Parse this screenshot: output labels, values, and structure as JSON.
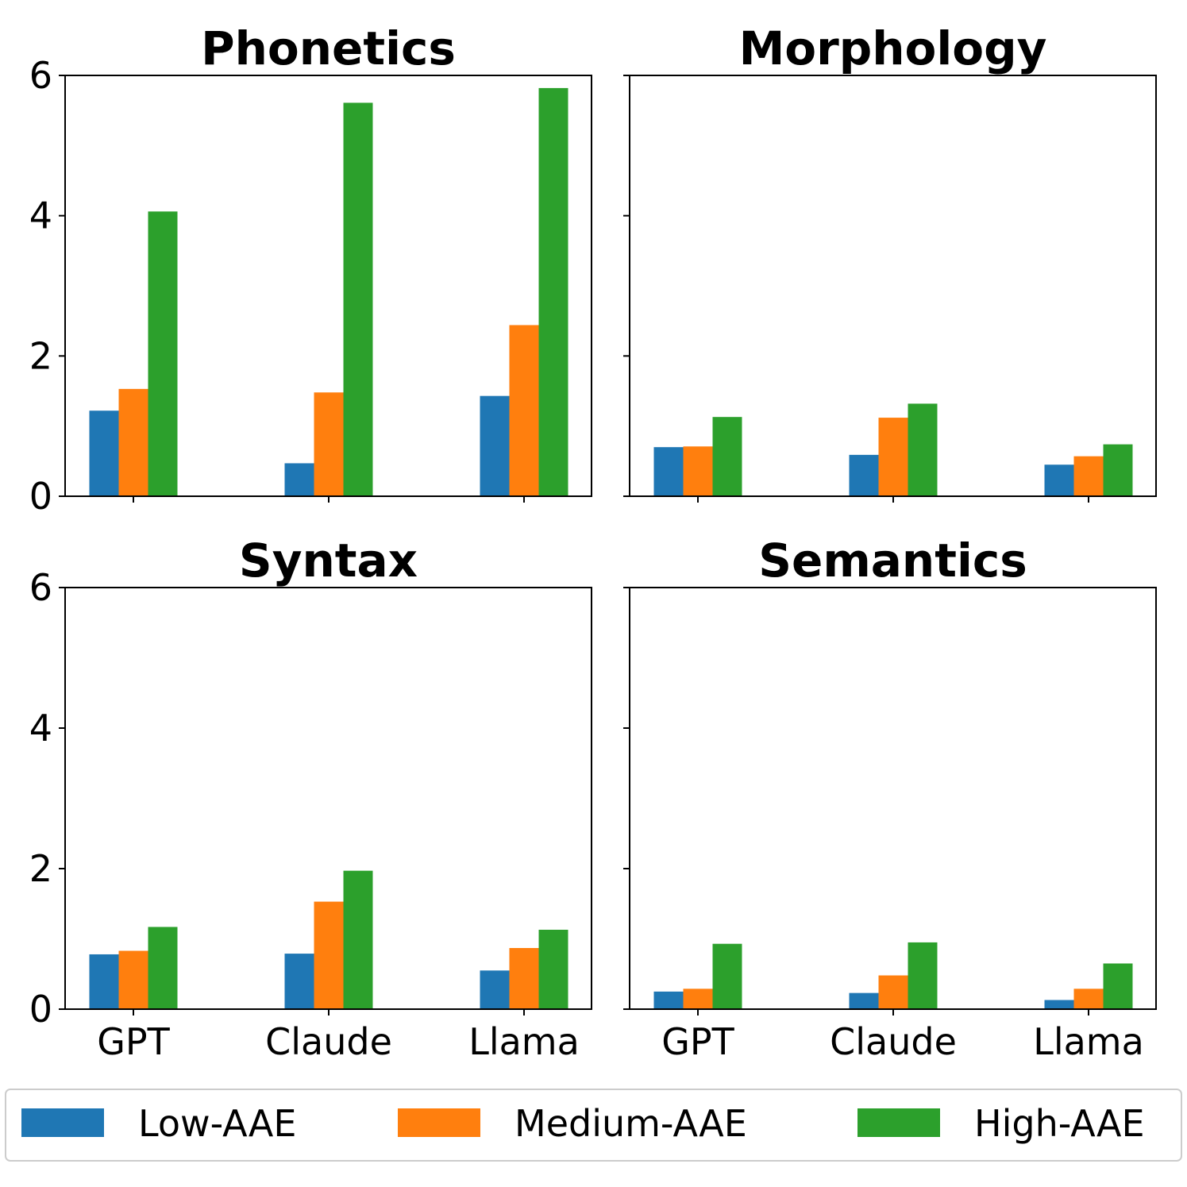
{
  "chart_data": {
    "type": "bar",
    "layout": "2x2 grid",
    "sharey": true,
    "categories": [
      "GPT",
      "Claude",
      "Llama"
    ],
    "ylim": [
      0,
      6
    ],
    "yticks": [
      0,
      2,
      4,
      6
    ],
    "legend": {
      "position": "bottom",
      "entries": [
        {
          "name": "Low-AAE",
          "color": "#1f77b4"
        },
        {
          "name": "Medium-AAE",
          "color": "#ff7f0e"
        },
        {
          "name": "High-AAE",
          "color": "#2ca02c"
        }
      ]
    },
    "panels": [
      {
        "title": "Phonetics",
        "series": [
          {
            "name": "Low-AAE",
            "values": [
              1.22,
              0.47,
              1.43
            ]
          },
          {
            "name": "Medium-AAE",
            "values": [
              1.53,
              1.48,
              2.44
            ]
          },
          {
            "name": "High-AAE",
            "values": [
              4.06,
              5.61,
              5.82
            ]
          }
        ]
      },
      {
        "title": "Morphology",
        "series": [
          {
            "name": "Low-AAE",
            "values": [
              0.7,
              0.59,
              0.45
            ]
          },
          {
            "name": "Medium-AAE",
            "values": [
              0.71,
              1.12,
              0.57
            ]
          },
          {
            "name": "High-AAE",
            "values": [
              1.13,
              1.32,
              0.74
            ]
          }
        ]
      },
      {
        "title": "Syntax",
        "series": [
          {
            "name": "Low-AAE",
            "values": [
              0.78,
              0.79,
              0.55
            ]
          },
          {
            "name": "Medium-AAE",
            "values": [
              0.83,
              1.53,
              0.87
            ]
          },
          {
            "name": "High-AAE",
            "values": [
              1.17,
              1.97,
              1.13
            ]
          }
        ]
      },
      {
        "title": "Semantics",
        "series": [
          {
            "name": "Low-AAE",
            "values": [
              0.25,
              0.23,
              0.13
            ]
          },
          {
            "name": "Medium-AAE",
            "values": [
              0.29,
              0.48,
              0.29
            ]
          },
          {
            "name": "High-AAE",
            "values": [
              0.93,
              0.95,
              0.65
            ]
          }
        ]
      }
    ]
  }
}
